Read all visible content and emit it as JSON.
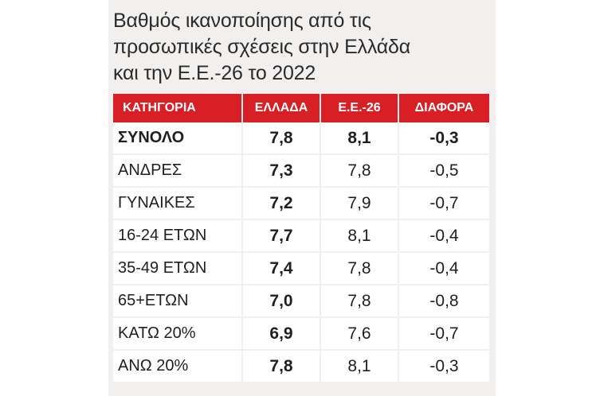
{
  "chart_data": {
    "type": "table",
    "title_lines": [
      "Βαθμός ικανοποίησης από τις",
      "προσωπικές σχέσεις στην Ελλάδα",
      "και την Ε.Ε.-26 το 2022"
    ],
    "columns": [
      "ΚΑΤΗΓΟΡΙΑ",
      "ΕΛΛΑΔΑ",
      "Ε.Ε.-26",
      "ΔΙΑΦΟΡΑ"
    ],
    "rows": [
      {
        "category": "ΣΥΝΟΛΟ",
        "greece": "7,8",
        "eu26": "8,1",
        "diff": "-0,3"
      },
      {
        "category": "ΑΝΔΡΕΣ",
        "greece": "7,3",
        "eu26": "7,8",
        "diff": "-0,5"
      },
      {
        "category": "ΓΥΝΑΙΚΕΣ",
        "greece": "7,2",
        "eu26": "7,9",
        "diff": "-0,7"
      },
      {
        "category": "16-24 ΕΤΩΝ",
        "greece": "7,7",
        "eu26": "8,1",
        "diff": "-0,4"
      },
      {
        "category": "35-49 ΕΤΩΝ",
        "greece": "7,4",
        "eu26": "7,8",
        "diff": "-0,4"
      },
      {
        "category": "65+ΕΤΩΝ",
        "greece": "7,0",
        "eu26": "7,8",
        "diff": "-0,8"
      },
      {
        "category": "ΚΑΤΩ 20%",
        "greece": "6,9",
        "eu26": "7,6",
        "diff": "-0,7"
      },
      {
        "category": "ΑΝΩ 20%",
        "greece": "7,8",
        "eu26": "8,1",
        "diff": "-0,3"
      }
    ],
    "colors": {
      "header_bg": "#d81f26",
      "header_text": "#ffffff",
      "panel_bg": "#f2f0ef"
    }
  }
}
